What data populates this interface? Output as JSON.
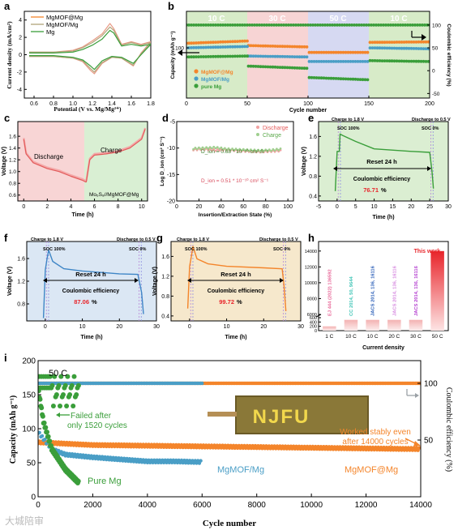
{
  "figure": {
    "panel_letters": [
      "a",
      "b",
      "c",
      "d",
      "e",
      "f",
      "g",
      "h",
      "i"
    ],
    "watermark": "大城陪审"
  },
  "colors": {
    "mgmof_mg": "#f4852b",
    "mgmof_mg_cv": "#e89a86",
    "mgmof_mg_plain": "#4a9ec6",
    "mgmof_mg_cv2": "#b1a57a",
    "pure_mg": "#3a9e3a",
    "rate_10c": "#d7ebc8",
    "rate_30c": "#f7d4d4",
    "rate_50c": "#d6d9f2",
    "discharge_bg": "#f8d5d5",
    "charge_bg": "#d9efd3",
    "panel_e_bg": "#dbeed2",
    "panel_f_bg": "#dbe7f4",
    "panel_g_bg": "#f6e8cc"
  },
  "panel_a": {
    "legend": [
      "MgMOF@Mg",
      "MgMOF/Mg",
      "Mg"
    ],
    "ylabel": "Current density (mA/cm²)",
    "xlabel": "Potential (V vs. Mg/Mg²⁺)",
    "xticks": [
      "0.6",
      "0.8",
      "1.0",
      "1.2",
      "1.4",
      "1.6",
      "1.8"
    ],
    "yticks": [
      "4",
      "2",
      "0",
      "-2",
      "-4"
    ]
  },
  "panel_b": {
    "rate_labels": [
      "10 C",
      "30 C",
      "50 C",
      "10 C"
    ],
    "ylabel_left": "Capacity (mAh g⁻¹)",
    "ylabel_right": "Coulombic efficiency (%)",
    "xlabel": "Cycle number",
    "xticks": [
      "0",
      "50",
      "100",
      "150",
      "200"
    ],
    "yticks_left": [
      "100"
    ],
    "yticks_right": [
      "100",
      "50",
      "0",
      "-50"
    ],
    "legend": [
      "MgMOF@Mg",
      "MgMOF/Mg",
      "pure Mg"
    ]
  },
  "panel_c": {
    "ylabel": "Voltage (V)",
    "xlabel": "Time (h)",
    "xticks": [
      "0",
      "2",
      "4",
      "6",
      "8",
      "10"
    ],
    "yticks": [
      "1.6",
      "1.4",
      "1.2",
      "1.0",
      "0.8",
      "0.6"
    ],
    "discharge": "Discharge",
    "charge": "Charge",
    "cell_label": "Mo₆S₈//MgMOF@Mg"
  },
  "panel_d": {
    "ylabel": "Log D_ion (cm² S⁻¹)",
    "xlabel": "Insertion/Extraction State (%)",
    "xticks": [
      "0",
      "20",
      "40",
      "60",
      "80",
      "100"
    ],
    "yticks": [
      "-5",
      "-10",
      "-15",
      "-20"
    ],
    "legend": [
      "Discharge",
      "Charge"
    ],
    "d_charge": "D_ion = 0.68 * 10⁻¹⁰ cm² S⁻¹",
    "d_discharge": "D_ion = 0.51 * 10⁻¹⁰ cm² S⁻¹"
  },
  "panel_e": {
    "charge_to": "Charge to 1.8 V",
    "discharge_to": "Discharge to 0.5 V",
    "soc100": "SOC 100%",
    "soc0": "SOC 0%",
    "reset": "Reset 24 h",
    "ce_label": "Coulombic efficiency",
    "ce_value": "76.71",
    "pct": "%",
    "ylabel": "Voltage (V)",
    "xlabel": "Time (h)",
    "xticks": [
      "-5",
      "0",
      "5",
      "10",
      "15",
      "20",
      "25",
      "30"
    ],
    "yticks": [
      "1.6",
      "1.2",
      "0.8",
      "0.4"
    ]
  },
  "panel_f": {
    "charge_to": "Charge to 1.8 V",
    "discharge_to": "Discharge to 0.5 V",
    "soc100": "SOC 100%",
    "soc0": "SOC 0%",
    "reset": "Reset 24 h",
    "ce_label": "Coulombic efficiency",
    "ce_value": "87.06",
    "pct": "%",
    "ylabel": "Voltage (V)",
    "xlabel": "Time (h)",
    "xticks": [
      "0",
      "10",
      "20",
      "30"
    ],
    "yticks": [
      "1.6",
      "1.2",
      "0.8"
    ]
  },
  "panel_g": {
    "charge_to": "Charge to 1.8 V",
    "discharge_to": "Discharge to 0.5 V",
    "soc100": "SOC 100%",
    "soc0": "SOC 0%",
    "reset": "Reset 24 h",
    "ce_label": "Coulombic efficiency",
    "ce_value": "99.72",
    "pct": "%",
    "ylabel": "Voltage (V)",
    "xlabel": "Time (h)",
    "xticks": [
      "0",
      "10",
      "20",
      "30"
    ],
    "yticks": [
      "1.6",
      "1.2",
      "0.8",
      "0.4"
    ]
  },
  "panel_h": {
    "xlabel": "Current density",
    "this_work": "This work",
    "bar_labels": [
      "EJ 444 (2022) 136592",
      "CC 2014, 50, 9644",
      "JACS 2014, 136, 16116",
      "JACS 2014, 136, 16116",
      "JACS 2014, 136, 16116"
    ],
    "categories": [
      "1 C",
      "10 C",
      "10 C",
      "20 C",
      "30 C",
      "50 C"
    ],
    "yticks": [
      "14000",
      "12000",
      "10000",
      "8000",
      "6000",
      "600",
      "400",
      "200",
      "0"
    ]
  },
  "panel_i": {
    "rate": "50 C",
    "ylabel_left": "Capacity (mAh g⁻¹)",
    "ylabel_right": "Coulombic efficiency (%)",
    "xlabel": "Cycle number",
    "xticks": [
      "0",
      "2000",
      "4000",
      "6000",
      "8000",
      "10000",
      "12000",
      "14000"
    ],
    "yticks_left": [
      "200",
      "150",
      "100",
      "50",
      "0"
    ],
    "yticks_right": [
      "100",
      "50"
    ],
    "failed": "Failed after\nonly 1520 cycles",
    "failed_l1": "Failed after",
    "failed_l2": "only 1520 cycles",
    "worked_l1": "Worked stably even",
    "worked_l2": "after 14000 cycles",
    "pure_mg": "Pure Mg",
    "mgmof_mg_plain": "MgMOF/Mg",
    "mgmof_mg": "MgMOF@Mg",
    "led_text": "NJFU"
  },
  "chart_data": [
    {
      "panel": "a",
      "type": "line",
      "title": "",
      "xlabel": "Potential (V vs. Mg/Mg²⁺)",
      "ylabel": "Current density (mA/cm²)",
      "xlim": [
        0.5,
        1.8
      ],
      "ylim": [
        -5,
        5
      ],
      "series": [
        {
          "name": "MgMOF@Mg",
          "x": [
            0.55,
            0.8,
            1.0,
            1.1,
            1.2,
            1.3,
            1.38,
            1.42,
            1.5,
            1.6,
            1.7,
            1.8,
            1.7,
            1.62,
            1.5,
            1.4,
            1.3,
            1.22,
            1.18,
            1.1,
            1.0,
            0.8,
            0.55
          ],
          "y": [
            0.3,
            0.3,
            0.5,
            0.9,
            1.6,
            2.4,
            3.6,
            3.0,
            1.2,
            1.5,
            1.2,
            1.5,
            0.2,
            -1.3,
            -0.4,
            -0.3,
            -1.0,
            -2.2,
            -1.8,
            -0.8,
            -0.4,
            -0.2,
            -0.2
          ]
        },
        {
          "name": "MgMOF/Mg",
          "x": [
            0.55,
            0.8,
            1.0,
            1.1,
            1.2,
            1.3,
            1.38,
            1.42,
            1.5,
            1.6,
            1.7,
            1.8,
            1.7,
            1.62,
            1.5,
            1.4,
            1.3,
            1.22,
            1.18,
            1.1,
            1.0,
            0.8,
            0.55
          ],
          "y": [
            0.3,
            0.3,
            0.4,
            0.8,
            1.4,
            2.2,
            3.2,
            2.8,
            1.1,
            1.4,
            1.1,
            1.4,
            0.1,
            -1.2,
            -0.4,
            -0.3,
            -0.9,
            -2.0,
            -1.6,
            -0.7,
            -0.4,
            -0.2,
            -0.2
          ]
        },
        {
          "name": "Mg",
          "x": [
            0.55,
            0.8,
            1.0,
            1.1,
            1.2,
            1.3,
            1.38,
            1.42,
            1.5,
            1.6,
            1.7,
            1.8,
            1.7,
            1.62,
            1.5,
            1.4,
            1.3,
            1.22,
            1.18,
            1.1,
            1.0,
            0.8,
            0.55
          ],
          "y": [
            0.2,
            0.2,
            0.3,
            0.6,
            1.1,
            1.8,
            2.8,
            2.5,
            1.0,
            1.2,
            1.0,
            1.2,
            0.0,
            -1.0,
            -0.3,
            -0.2,
            -0.7,
            -1.7,
            -1.3,
            -0.6,
            -0.3,
            -0.1,
            -0.1
          ]
        }
      ]
    },
    {
      "panel": "b",
      "type": "scatter",
      "title": "",
      "xlabel": "Cycle number",
      "ylabel": "Capacity (mAh g⁻¹)",
      "ylabel_right": "Coulombic efficiency (%)",
      "xlim": [
        0,
        200
      ],
      "regions": [
        {
          "label": "10 C",
          "x": [
            0,
            50
          ]
        },
        {
          "label": "30 C",
          "x": [
            50,
            100
          ]
        },
        {
          "label": "50 C",
          "x": [
            100,
            150
          ]
        },
        {
          "label": "10 C",
          "x": [
            150,
            200
          ]
        }
      ],
      "series": [
        {
          "name": "MgMOF@Mg",
          "x": [
            0,
            50,
            51,
            100,
            101,
            150,
            151,
            200
          ],
          "y": [
            110,
            115,
            105,
            102,
            90,
            90,
            112,
            113
          ]
        },
        {
          "name": "MgMOF/Mg",
          "x": [
            0,
            50,
            51,
            100,
            101,
            150,
            151,
            200
          ],
          "y": [
            100,
            103,
            82,
            80,
            70,
            70,
            100,
            98
          ]
        },
        {
          "name": "pure Mg",
          "x": [
            0,
            50,
            51,
            100,
            101,
            150,
            151,
            200
          ],
          "y": [
            80,
            82,
            60,
            55,
            35,
            30,
            72,
            70
          ]
        },
        {
          "name": "Coulombic efficiency",
          "x": [
            0,
            200
          ],
          "y": [
            100,
            100
          ]
        }
      ]
    },
    {
      "panel": "c",
      "type": "line",
      "title": "",
      "xlabel": "Time (h)",
      "ylabel": "Voltage (V)",
      "xlim": [
        -0.5,
        10.5
      ],
      "ylim": [
        0.5,
        1.85
      ],
      "series": [
        {
          "name": "Discharge",
          "x": [
            0,
            0.2,
            0.8,
            2,
            3,
            4,
            5,
            5.3
          ],
          "y": [
            1.55,
            1.3,
            1.15,
            1.05,
            1.0,
            0.92,
            0.85,
            0.82
          ]
        },
        {
          "name": "Charge",
          "x": [
            5.3,
            5.6,
            6,
            7,
            8,
            9,
            10,
            10.3
          ],
          "y": [
            0.82,
            1.2,
            1.28,
            1.3,
            1.33,
            1.4,
            1.55,
            1.72
          ]
        }
      ]
    },
    {
      "panel": "d",
      "type": "scatter",
      "title": "",
      "xlabel": "Insertion/Extraction State (%)",
      "ylabel": "Log D_ion (cm² S⁻¹)",
      "xlim": [
        0,
        105
      ],
      "ylim": [
        -20,
        -5
      ],
      "series": [
        {
          "name": "Discharge",
          "x": [
            15,
            25,
            35,
            45,
            55,
            65,
            75,
            85,
            95
          ],
          "y": [
            -10.3,
            -10.2,
            -10.4,
            -10.3,
            -10.5,
            -10.6,
            -10.7,
            -10.6,
            -10.5
          ]
        },
        {
          "name": "Charge",
          "x": [
            15,
            25,
            35,
            45,
            55,
            65,
            75,
            85,
            95
          ],
          "y": [
            -10.1,
            -10.0,
            -9.9,
            -10.2,
            -10.3,
            -10.4,
            -10.5,
            -10.4,
            -10.2
          ]
        }
      ]
    },
    {
      "panel": "e",
      "type": "line",
      "title": "",
      "xlabel": "Time (h)",
      "ylabel": "Voltage (V)",
      "xlim": [
        -5,
        30
      ],
      "ylim": [
        0.3,
        1.9
      ],
      "series": [
        {
          "name": "",
          "x": [
            -0.5,
            0,
            0.6,
            0.8,
            1.5,
            5,
            10,
            20,
            25,
            25.6,
            26
          ],
          "y": [
            0.5,
            1.3,
            1.3,
            1.65,
            1.62,
            1.5,
            1.35,
            1.3,
            1.28,
            0.9,
            0.55
          ]
        }
      ]
    },
    {
      "panel": "f",
      "type": "line",
      "title": "",
      "xlabel": "Time (h)",
      "ylabel": "Voltage (V)",
      "xlim": [
        -5,
        30
      ],
      "ylim": [
        0.5,
        1.9
      ],
      "series": [
        {
          "name": "",
          "x": [
            -0.5,
            0,
            0.5,
            0.9,
            2,
            5,
            10,
            20,
            25,
            26,
            26.5
          ],
          "y": [
            0.55,
            1.4,
            1.6,
            1.75,
            1.55,
            1.42,
            1.38,
            1.33,
            1.32,
            1.0,
            0.62
          ]
        }
      ]
    },
    {
      "panel": "g",
      "type": "line",
      "title": "",
      "xlabel": "Time (h)",
      "ylabel": "Voltage (V)",
      "xlim": [
        -5,
        30
      ],
      "ylim": [
        0.3,
        1.9
      ],
      "series": [
        {
          "name": "",
          "x": [
            -0.5,
            0,
            0.5,
            0.9,
            2,
            5,
            10,
            20,
            25,
            25.5,
            26
          ],
          "y": [
            0.55,
            1.4,
            1.6,
            1.8,
            1.55,
            1.45,
            1.4,
            1.37,
            1.35,
            1.0,
            0.5
          ]
        }
      ]
    },
    {
      "panel": "h",
      "type": "bar",
      "title": "",
      "xlabel": "Current density",
      "ylabel": "",
      "categories": [
        "1 C",
        "10 C",
        "10 C",
        "20 C",
        "30 C",
        "50 C"
      ],
      "values": [
        200,
        500,
        500,
        500,
        500,
        14000
      ],
      "bar_labels": [
        "EJ 444 (2022) 136592",
        "CC 2014, 50, 9644",
        "JACS 2014, 136, 16116",
        "JACS 2014, 136, 16116",
        "JACS 2014, 136, 16116",
        "This work"
      ]
    },
    {
      "panel": "i",
      "type": "scatter",
      "title": "",
      "xlabel": "Cycle number",
      "ylabel": "Capacity (mAh g⁻¹)",
      "ylabel_right": "Coulombic efficiency (%)",
      "xlim": [
        0,
        14000
      ],
      "ylim": [
        0,
        200
      ],
      "series": [
        {
          "name": "MgMOF@Mg",
          "x": [
            0,
            1000,
            2000,
            4000,
            6000,
            8000,
            10000,
            12000,
            14000
          ],
          "y": [
            80,
            78,
            76,
            75,
            74,
            73,
            72,
            71,
            70
          ]
        },
        {
          "name": "MgMOF/Mg",
          "x": [
            0,
            500,
            1000,
            2000,
            3000,
            4000,
            5000,
            6000
          ],
          "y": [
            95,
            70,
            62,
            58,
            55,
            52,
            52,
            51
          ]
        },
        {
          "name": "Pure Mg",
          "x": [
            0,
            200,
            500,
            1000,
            1500
          ],
          "y": [
            160,
            110,
            70,
            40,
            20
          ]
        }
      ]
    }
  ]
}
